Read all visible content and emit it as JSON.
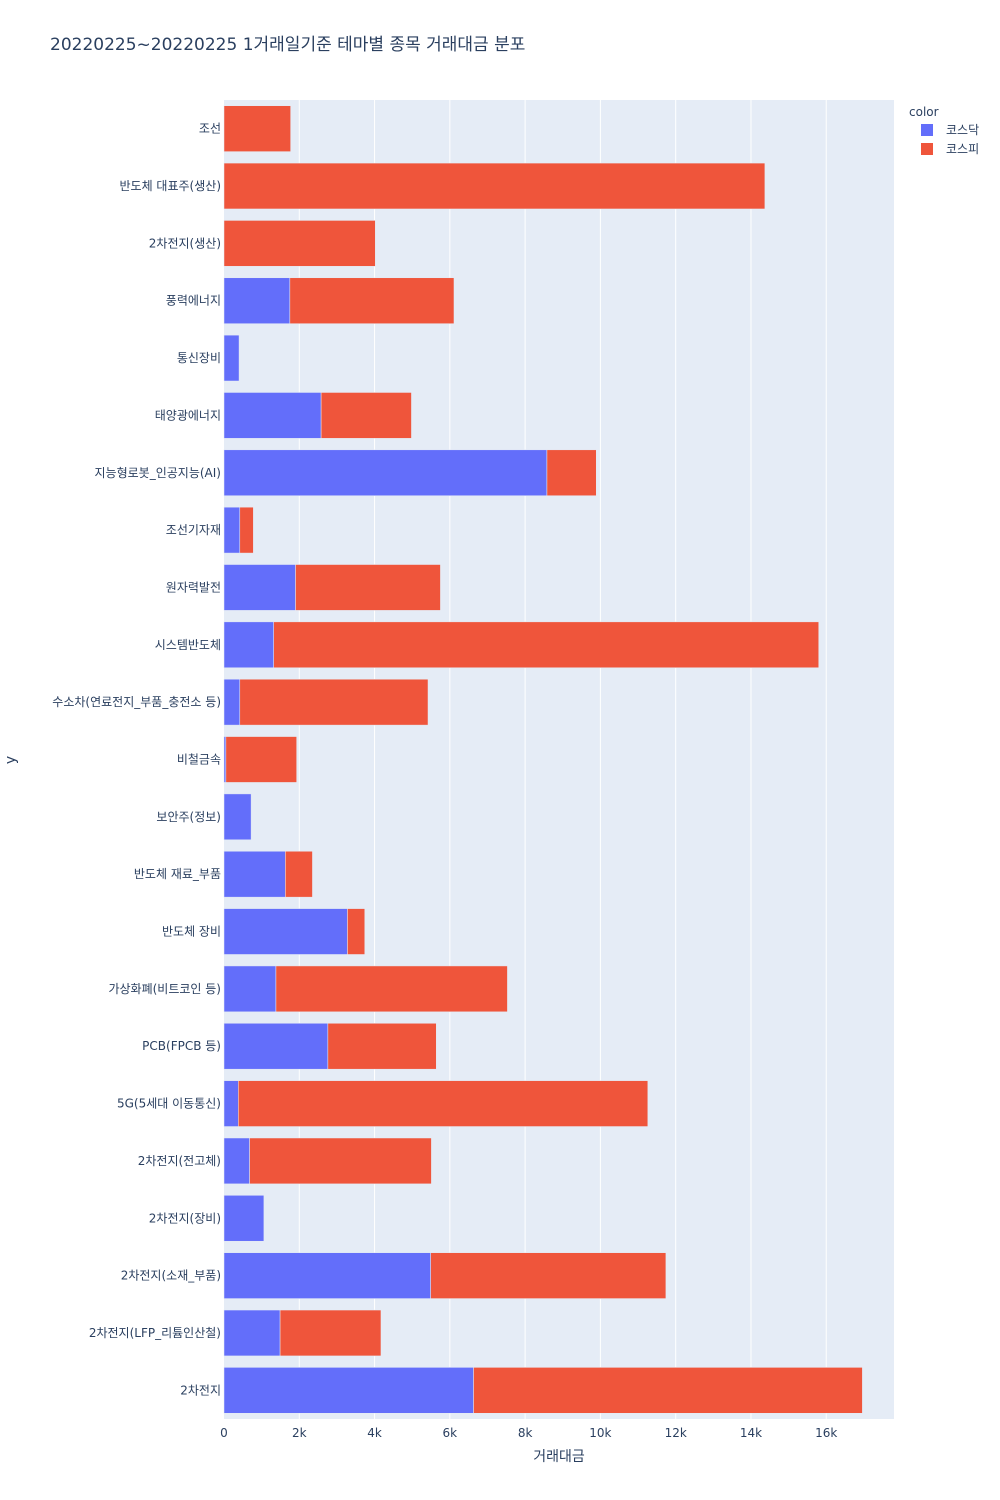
{
  "chart_data": {
    "type": "bar",
    "orientation": "horizontal",
    "barmode": "stack",
    "title": "20220225~20220225 1거래일기준 테마별 종목 거래대금 분포",
    "xlabel": "거래대금",
    "ylabel": "y",
    "xlim": [
      0,
      17800
    ],
    "x_ticks": [
      0,
      2000,
      4000,
      6000,
      8000,
      10000,
      12000,
      14000,
      16000
    ],
    "x_tick_labels": [
      "0",
      "2k",
      "4k",
      "6k",
      "8k",
      "10k",
      "12k",
      "14k",
      "16k"
    ],
    "grid": true,
    "legend_title": "color",
    "legend_position": "top-right",
    "categories": [
      "조선",
      "반도체 대표주(생산)",
      "2차전지(생산)",
      "풍력에너지",
      "통신장비",
      "태양광에너지",
      "지능형로봇_인공지능(AI)",
      "조선기자재",
      "원자력발전",
      "시스템반도체",
      "수소차(연료전지_부품_충전소 등)",
      "비철금속",
      "보안주(정보)",
      "반도체 재료_부품",
      "반도체 장비",
      "가상화폐(비트코인 등)",
      "PCB(FPCB 등)",
      "5G(5세대 이동통신)",
      "2차전지(전고체)",
      "2차전지(장비)",
      "2차전지(소재_부품)",
      "2차전지(LFP_리튬인산철)",
      "2차전지"
    ],
    "series": [
      {
        "name": "코스닥",
        "color": "#636efa",
        "values": [
          0,
          0,
          0,
          1750,
          400,
          2580,
          8580,
          420,
          1900,
          1320,
          420,
          50,
          720,
          1630,
          3280,
          1380,
          2760,
          380,
          680,
          1060,
          5490,
          1490,
          6630
        ]
      },
      {
        "name": "코스피",
        "color": "#ef553b",
        "values": [
          1770,
          14370,
          4020,
          4360,
          0,
          2400,
          1310,
          360,
          3850,
          14480,
          5000,
          1880,
          0,
          720,
          460,
          6150,
          2880,
          10880,
          4830,
          0,
          6250,
          2680,
          10330
        ]
      }
    ]
  }
}
